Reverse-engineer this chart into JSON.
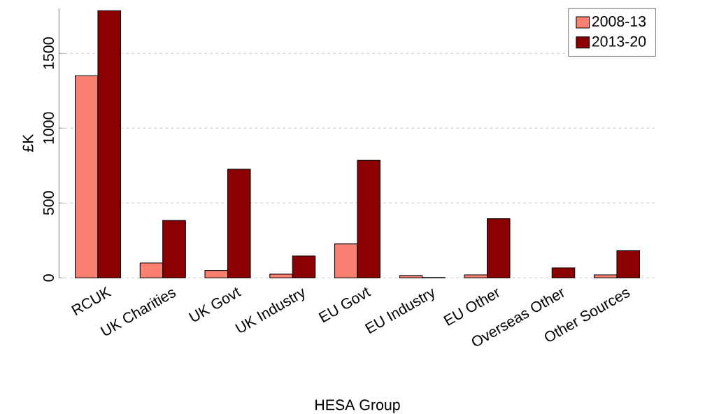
{
  "chart_data": {
    "type": "bar",
    "xlabel": "HESA Group",
    "ylabel": "£K",
    "categories": [
      "RCUK",
      "UK Charities",
      "UK Govt",
      "UK Industry",
      "EU Govt",
      "EU Industry",
      "EU Other",
      "Overseas Other",
      "Other Sources"
    ],
    "series": [
      {
        "name": "2008-13",
        "color": "#fa8072",
        "values": [
          1350,
          100,
          50,
          25,
          227,
          15,
          20,
          null,
          20
        ]
      },
      {
        "name": "2013-20",
        "color": "#8b0000",
        "values": [
          1785,
          383,
          726,
          146,
          785,
          2,
          395,
          67,
          181
        ]
      }
    ],
    "ylim": [
      0,
      1800
    ],
    "yticks": [
      0,
      500,
      1000,
      1500
    ],
    "grid": "y",
    "legend": "top right"
  }
}
